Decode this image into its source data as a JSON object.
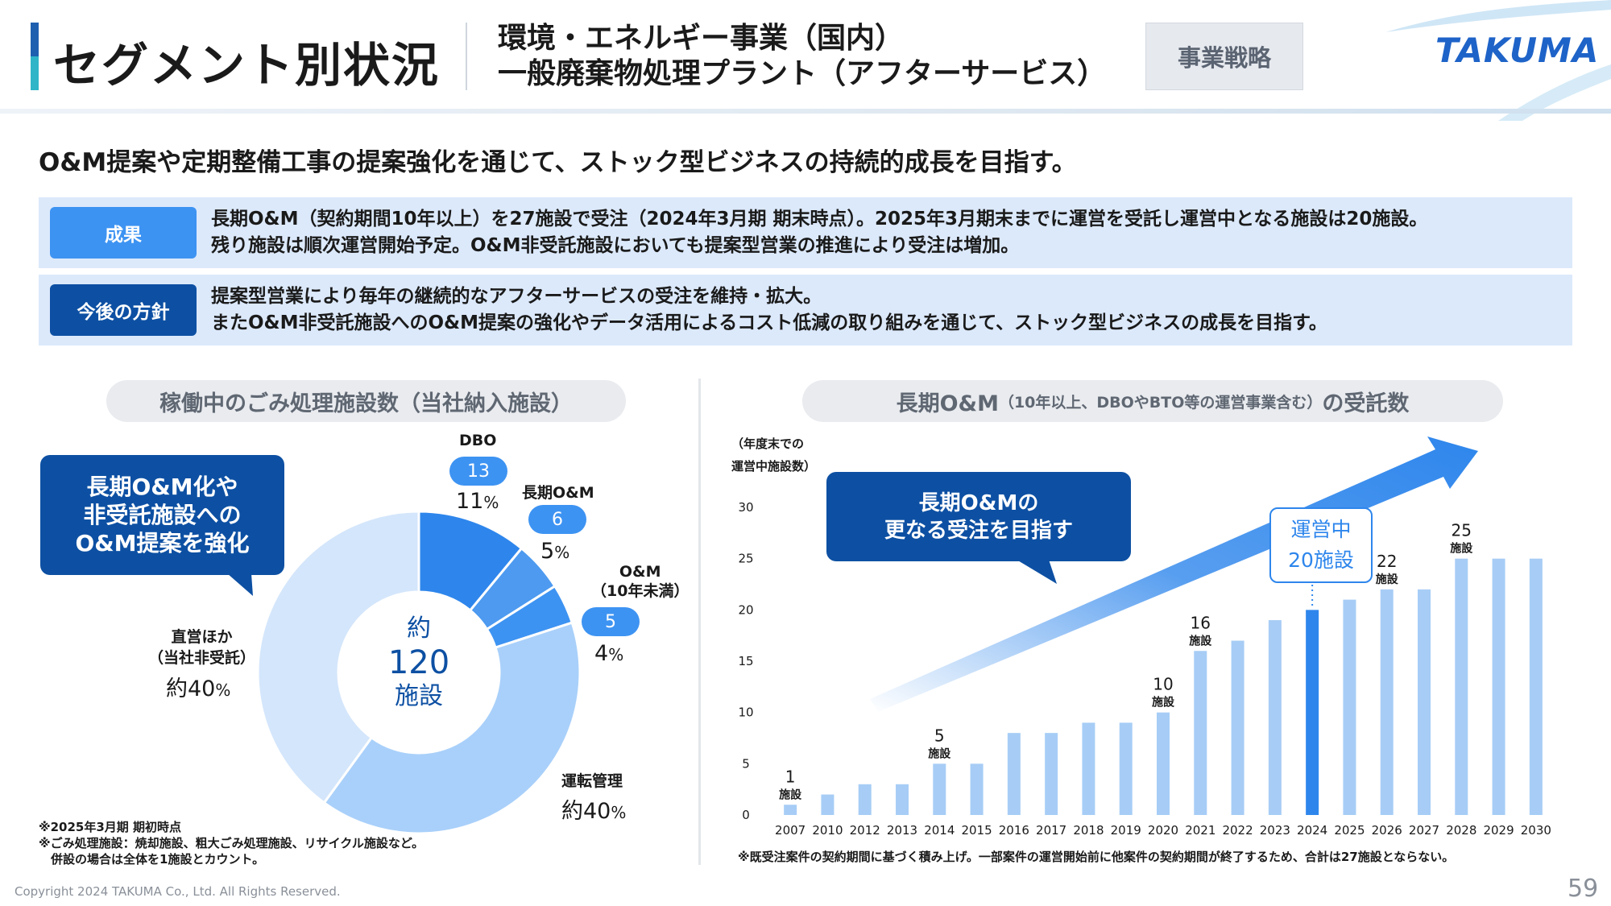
{
  "header": {
    "main_title": "セグメント別状況",
    "subtitle_line1": "環境・エネルギー事業（国内）",
    "subtitle_line2": "一般廃棄物処理プラント（アフターサービス）",
    "tag": "事業戦略",
    "logo_text": "TAKUMA"
  },
  "lead": "O&M提案や定期整備工事の提案強化を通じて、ストック型ビジネスの持続的成長を目指す。",
  "results": {
    "label": "成果",
    "line1": "長期O&M（契約期間10年以上）を27施設で受注（2024年3月期 期末時点）。2025年3月期末までに運営を受託し運営中となる施設は20施設。",
    "line2": "残り施設は順次運営開始予定。O&M非受託施設においても提案型営業の推進により受注は増加。"
  },
  "policy": {
    "label": "今後の方針",
    "line1": "提案型営業により毎年の継続的なアフターサービスの受注を維持・拡大。",
    "line2": "またO&M非受託施設へのO&M提案の強化やデータ活用によるコスト低減の取り組みを通じて、ストック型ビジネスの成長を目指す。"
  },
  "left_panel": {
    "title": "稼働中のごみ処理施設数（当社納入施設）",
    "callout_line1": "長期O&M化や",
    "callout_line2": "非受託施設への",
    "callout_line3": "O&M提案を強化",
    "center_line1": "約",
    "center_line2": "120",
    "center_line3": "施設",
    "labels": {
      "dbo": "DBO",
      "dbo_count": "13",
      "dbo_pct": "11",
      "long_om": "長期O&M",
      "long_om_count": "6",
      "long_om_pct": "5",
      "om_line1": "O&M",
      "om_line2": "（10年未満）",
      "om_count": "5",
      "om_pct": "4",
      "direct_line1": "直営ほか",
      "direct_line2": "（当社非受託）",
      "direct_pct": "約40",
      "operation": "運転管理",
      "operation_pct": "約40",
      "pct_unit": "%"
    },
    "footnote1": "※2025年3月期 期初時点",
    "footnote2": "※ごみ処理施設：焼却施設、粗大ごみ処理施設、リサイクル施設など。",
    "footnote3": "　併設の場合は全体を1施設とカウント。"
  },
  "right_panel": {
    "title_main": "長期O&M",
    "title_small": "（10年以上、DBOやBTO等の運営事業含む）",
    "title_tail": "の受託数",
    "ylabel_line1": "（年度末での",
    "ylabel_line2": "運営中施設数）",
    "callout_line1": "長期O&Mの",
    "callout_line2": "更なる受注を目指す",
    "highlight_line1": "運営中",
    "highlight_line2": "20施設",
    "unit": "施設",
    "footnote": "※既受注案件の契約期間に基づく積み上げ。一部案件の運営開始前に他案件の契約期間が終了するため、合計は27施設とならない。"
  },
  "chart_data": [
    {
      "type": "pie",
      "categories": [
        "DBO",
        "長期O&M",
        "O&M（10年未満）",
        "運転管理",
        "直営ほか（当社非受託）"
      ],
      "values": [
        11,
        5,
        4,
        40,
        40
      ],
      "counts": [
        13,
        6,
        5,
        null,
        null
      ],
      "colors": [
        "#2e86ec",
        "#4d9af0",
        "#3d93f2",
        "#a9d0fa",
        "#d4e6fb"
      ]
    },
    {
      "type": "bar",
      "categories": [
        "2007",
        "2010",
        "2012",
        "2013",
        "2014",
        "2015",
        "2016",
        "2017",
        "2018",
        "2019",
        "2020",
        "2021",
        "2022",
        "2023",
        "2024",
        "2025",
        "2026",
        "2027",
        "2028",
        "2029",
        "2030"
      ],
      "values": [
        1,
        2,
        3,
        3,
        5,
        5,
        8,
        8,
        9,
        9,
        10,
        16,
        17,
        19,
        20,
        21,
        22,
        22,
        25,
        25,
        25
      ],
      "highlight_category": "2024",
      "value_labels": {
        "2007": "1",
        "2014": "5",
        "2020": "10",
        "2021": "16",
        "2026": "22",
        "2028": "25"
      },
      "ylim": [
        0,
        30
      ],
      "yticks": [
        0,
        5,
        10,
        15,
        20,
        25,
        30
      ],
      "bar_color": "#a7cdf6",
      "highlight_color": "#2e86ec"
    }
  ],
  "footer": {
    "copyright": "Copyright  2024 TAKUMA Co., Ltd.  All Rights Reserved.",
    "page": "59"
  }
}
